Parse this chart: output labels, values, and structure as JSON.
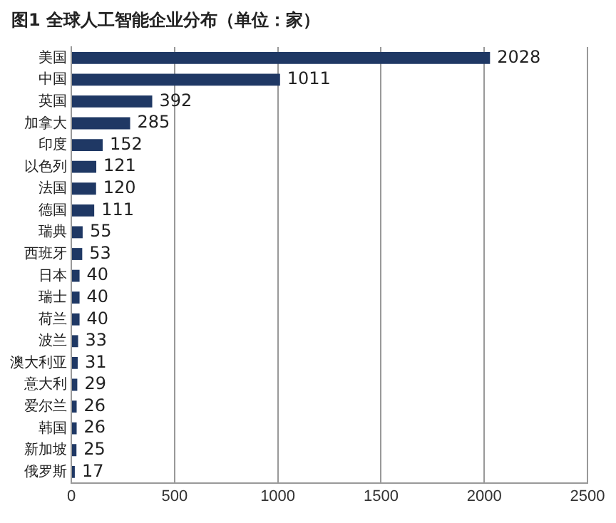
{
  "chart_data": {
    "type": "bar",
    "orientation": "horizontal",
    "title": "图1 全球人工智能企业分布（单位：家）",
    "categories": [
      "美国",
      "中国",
      "英国",
      "加拿大",
      "印度",
      "以色列",
      "法国",
      "德国",
      "瑞典",
      "西班牙",
      "日本",
      "瑞士",
      "荷兰",
      "波兰",
      "澳大利亚",
      "意大利",
      "爱尔兰",
      "韩国",
      "新加坡",
      "俄罗斯"
    ],
    "values": [
      2028,
      1011,
      392,
      285,
      152,
      121,
      120,
      111,
      55,
      53,
      40,
      40,
      40,
      33,
      31,
      29,
      26,
      26,
      25,
      17
    ],
    "color": "#1f3864",
    "xlim": [
      0,
      2500
    ],
    "xticks": [
      0,
      500,
      1000,
      1500,
      2000,
      2500
    ],
    "grid": "x",
    "data_labels": true,
    "legend": false
  }
}
